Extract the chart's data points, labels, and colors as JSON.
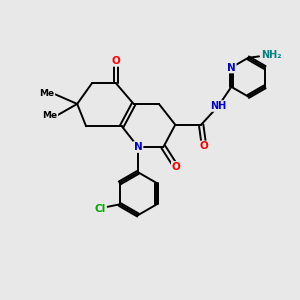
{
  "background_color": "#e8e8e8",
  "atom_colors": {
    "N": "#0000cd",
    "O": "#ff0000",
    "Cl": "#00aa00",
    "C": "#000000",
    "H_teal": "#008080",
    "NH2_H": "#008080"
  },
  "bond_color": "#000000",
  "bond_width": 1.4,
  "figsize": [
    3.0,
    3.0
  ],
  "dpi": 100,
  "xlim": [
    0,
    10
  ],
  "ylim": [
    0,
    10
  ]
}
